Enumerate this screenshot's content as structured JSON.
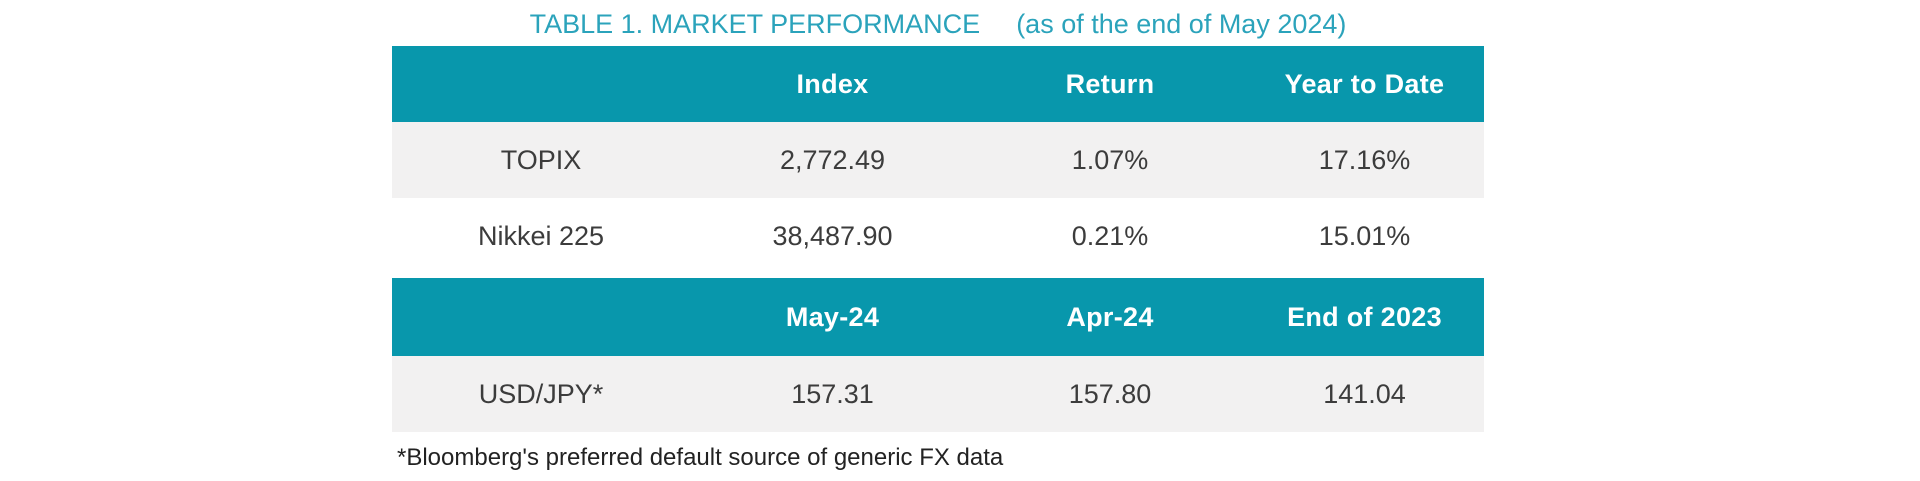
{
  "title": {
    "text": "TABLE 1. MARKET PERFORMANCE",
    "as_of": "(as of the end of May 2024)"
  },
  "table1": {
    "headers": [
      "",
      "Index",
      "Return",
      "Year to Date"
    ],
    "rows": [
      {
        "label": "TOPIX",
        "values": [
          "2,772.49",
          "1.07%",
          "17.16%"
        ]
      },
      {
        "label": "Nikkei 225",
        "values": [
          "38,487.90",
          "0.21%",
          "15.01%"
        ]
      }
    ]
  },
  "table2": {
    "headers": [
      "",
      "May-24",
      "Apr-24",
      "End of 2023"
    ],
    "rows": [
      {
        "label": "USD/JPY*",
        "values": [
          "157.31",
          "157.80",
          "141.04"
        ]
      }
    ]
  },
  "footnote": "*Bloomberg's preferred default source of generic FX data",
  "colors": {
    "header_bg": "#0897AC",
    "title_text": "#2BA3BB",
    "row_alt_bg": "#F2F1F1",
    "body_text": "#3C3C3C"
  }
}
